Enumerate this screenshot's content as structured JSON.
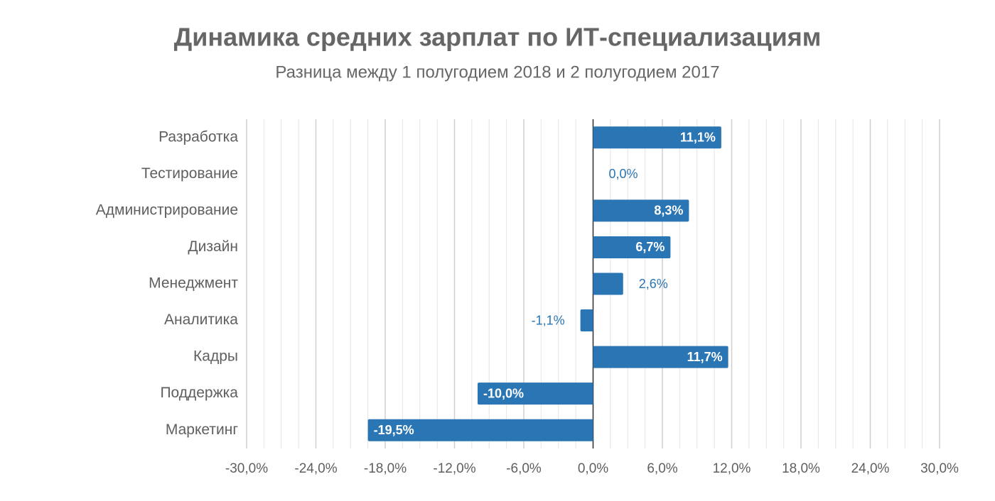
{
  "chart_data": {
    "type": "bar",
    "orientation": "horizontal",
    "title": "Динамика средних зарплат по ИТ-специализациям",
    "subtitle": "Разница между 1 полугодием 2018 и 2 полугодием 2017",
    "categories": [
      "Разработка",
      "Тестирование",
      "Администрирование",
      "Дизайн",
      "Менеджмент",
      "Аналитика",
      "Кадры",
      "Поддержка",
      "Маркетинг"
    ],
    "values": [
      11.1,
      0.0,
      8.3,
      6.7,
      2.6,
      -1.1,
      11.7,
      -10.0,
      -19.5
    ],
    "value_labels": [
      "11,1%",
      "0,0%",
      "8,3%",
      "6,7%",
      "2,6%",
      "-1,1%",
      "11,7%",
      "-10,0%",
      "-19,5%"
    ],
    "color": "#2a75b3",
    "xlim": [
      -30,
      30
    ],
    "xticks": [
      {
        "value": -30,
        "label": "-30,0%"
      },
      {
        "value": -24,
        "label": "-24,0%"
      },
      {
        "value": -18,
        "label": "-18,0%"
      },
      {
        "value": -12,
        "label": "-12,0%"
      },
      {
        "value": -6,
        "label": "-6,0%"
      },
      {
        "value": 0,
        "label": "0,0%"
      },
      {
        "value": 6,
        "label": "6,0%"
      },
      {
        "value": 12,
        "label": "12,0%"
      },
      {
        "value": 18,
        "label": "18,0%"
      },
      {
        "value": 24,
        "label": "24,0%"
      },
      {
        "value": 30,
        "label": "30,0%"
      }
    ],
    "grid": true
  }
}
